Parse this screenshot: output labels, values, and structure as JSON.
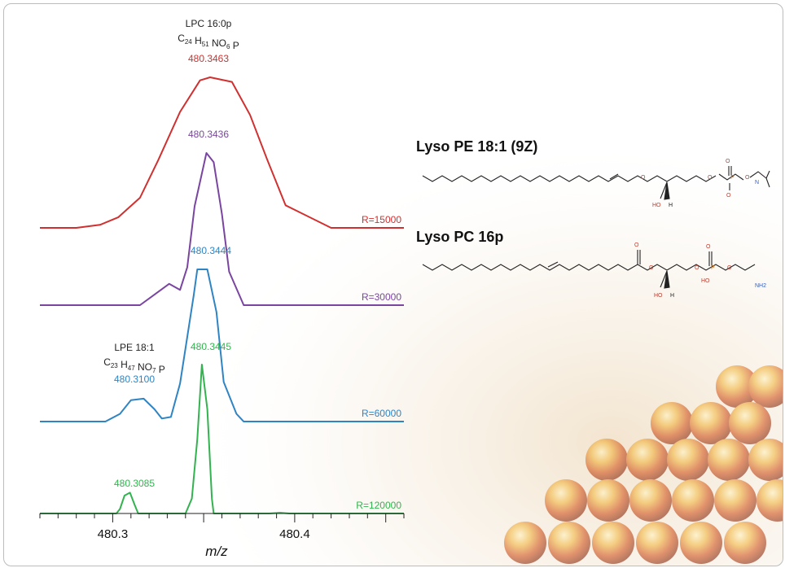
{
  "chart_data": {
    "type": "line",
    "xlabel": "m/z",
    "x_ticks": [
      480.3,
      480.4
    ],
    "x_tick_labels": [
      "480.3",
      "480.4"
    ],
    "xlim": [
      480.26,
      480.46
    ],
    "grid": false,
    "series": [
      {
        "name": "R=15000",
        "color": "#d0302f",
        "peaks": [
          {
            "label": "480.3463",
            "x": 480.3463,
            "rel_height": 1.0
          }
        ],
        "profile_x": [
          480.26,
          480.28,
          480.293,
          480.303,
          480.315,
          480.325,
          480.337,
          480.348,
          480.3535,
          480.3655,
          480.3755,
          480.385,
          480.395,
          480.42,
          480.46
        ],
        "profile_y": [
          0,
          0,
          0.02,
          0.07,
          0.2,
          0.45,
          0.77,
          0.98,
          1.0,
          0.97,
          0.75,
          0.45,
          0.15,
          0,
          0
        ]
      },
      {
        "name": "R=30000",
        "color": "#7a45a0",
        "peaks": [
          {
            "label": "480.3436",
            "x": 480.3436,
            "rel_height": 1.0
          }
        ],
        "profile_x": [
          480.26,
          480.315,
          480.323,
          480.331,
          480.337,
          480.341,
          480.345,
          480.3515,
          480.3555,
          480.36,
          480.364,
          480.372,
          480.4,
          480.46
        ],
        "profile_y": [
          0,
          0,
          0.07,
          0.14,
          0.1,
          0.25,
          0.65,
          1.0,
          0.94,
          0.6,
          0.22,
          0,
          0,
          0
        ]
      },
      {
        "name": "R=60000",
        "color": "#2f84c4",
        "peaks": [
          {
            "label": "480.3444",
            "x": 480.3444,
            "rel_height": 1.0
          },
          {
            "label": "480.3100",
            "x": 480.31,
            "rel_height": 0.15
          }
        ],
        "profile_x": [
          480.26,
          480.296,
          480.304,
          480.31,
          480.317,
          480.323,
          480.327,
          480.332,
          480.337,
          480.3445,
          480.3465,
          480.352,
          480.357,
          480.361,
          480.368,
          480.372,
          480.46
        ],
        "profile_y": [
          0,
          0,
          0.05,
          0.14,
          0.15,
          0.08,
          0.02,
          0.03,
          0.25,
          0.83,
          1.0,
          1.0,
          0.72,
          0.26,
          0.05,
          0,
          0
        ]
      },
      {
        "name": "R=120000",
        "color": "#33b34f",
        "peaks": [
          {
            "label": "480.3445",
            "x": 480.3445,
            "rel_height": 1.0
          },
          {
            "label": "480.3085",
            "x": 480.3085,
            "rel_height": 0.14
          }
        ],
        "profile_x": [
          480.26,
          480.302,
          480.304,
          480.3065,
          480.3095,
          480.312,
          480.314,
          480.34,
          480.3435,
          480.3465,
          480.349,
          480.352,
          480.3545,
          480.3555,
          480.36,
          480.386,
          480.392,
          480.397,
          480.46
        ],
        "profile_y": [
          0,
          0,
          0.03,
          0.12,
          0.14,
          0.06,
          0,
          0,
          0.1,
          0.5,
          1.0,
          0.7,
          0.1,
          0,
          0,
          0,
          0.005,
          0,
          0
        ]
      }
    ],
    "annotations": [
      {
        "id": "lpc",
        "line1": "LPC 16:0p",
        "formula_parts": [
          [
            "C",
            "24"
          ],
          [
            "H",
            "51"
          ],
          [
            "NO",
            "6"
          ],
          [
            "P",
            ""
          ]
        ]
      },
      {
        "id": "lpe",
        "line1": "LPE 18:1",
        "formula_parts": [
          [
            "C",
            "23"
          ],
          [
            "H",
            "47"
          ],
          [
            "NO",
            "7"
          ],
          [
            "P",
            ""
          ]
        ]
      }
    ]
  },
  "structures": [
    {
      "name": "Lyso PE 18:1 (9Z)",
      "atoms": [
        "O",
        "O",
        "O",
        "O",
        "P",
        "O",
        "HO",
        "H",
        "N"
      ]
    },
    {
      "name": "Lyso PC 16p",
      "atoms": [
        "O",
        "O",
        "O",
        "O",
        "O",
        "P",
        "HO",
        "HO",
        "H",
        "NH2"
      ]
    }
  ]
}
